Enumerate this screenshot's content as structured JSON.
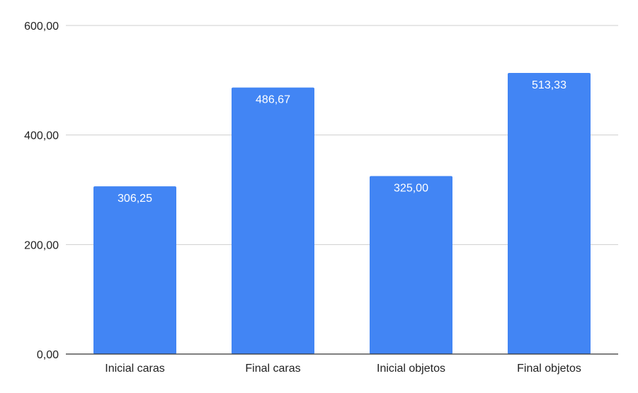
{
  "chart_data": {
    "type": "bar",
    "categories": [
      "Inicial caras",
      "Final caras",
      "Inicial objetos",
      "Final objetos"
    ],
    "values": [
      306.25,
      486.67,
      325.0,
      513.33
    ],
    "data_labels": [
      "306,25",
      "486,67",
      "325,00",
      "513,33"
    ],
    "y_ticks": [
      0,
      200,
      400,
      600
    ],
    "y_tick_labels": [
      "0,00",
      "200,00",
      "400,00",
      "600,00"
    ],
    "ylim": [
      0,
      600
    ],
    "title": "",
    "xlabel": "",
    "ylabel": "",
    "grid": true,
    "legend": "none",
    "bar_color": "#4285f4"
  }
}
